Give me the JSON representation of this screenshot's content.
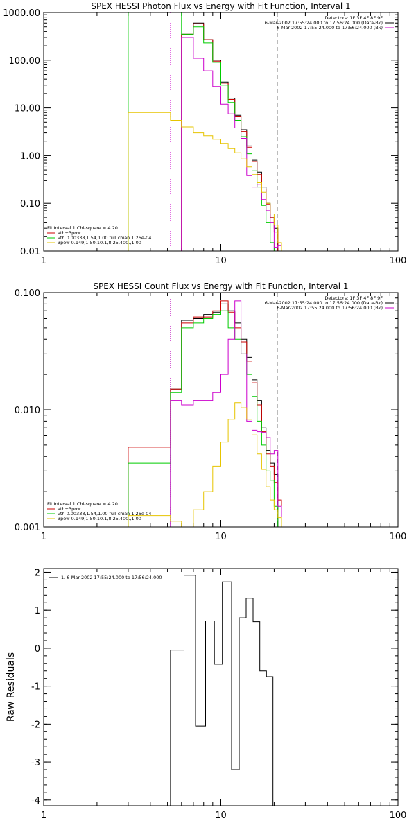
{
  "chart_data": [
    {
      "type": "line",
      "title": "SPEX HESSI Photon Flux vs Energy with Fit Function, Interval 1",
      "xlabel": "",
      "ylabel": "",
      "xscale": "log",
      "yscale": "log",
      "xlim": [
        1,
        100
      ],
      "ylim": [
        0.01,
        1000
      ],
      "xticks": [
        {
          "v": 1,
          "t": "1"
        },
        {
          "v": 10,
          "t": "10"
        },
        {
          "v": 100,
          "t": "100"
        }
      ],
      "yticks": [
        {
          "v": 0.01,
          "t": "0.01"
        },
        {
          "v": 0.1,
          "t": "0.10"
        },
        {
          "v": 1,
          "t": "1.00"
        },
        {
          "v": 10,
          "t": "10.00"
        },
        {
          "v": 100,
          "t": "100.00"
        },
        {
          "v": 1000,
          "t": "1000.00"
        }
      ],
      "info_lines": [
        {
          "text": "Detectors: 1F 3F 4F 8F 9F"
        },
        {
          "text": "6-Mar-2002 17:55:24.000 to 17:56:24.000 (Data-Bk)",
          "color": "#000000"
        },
        {
          "text": "6-Mar-2002 17:55:24.000 to 17:56:24.000 (Bk)",
          "color": "#cc00cc"
        }
      ],
      "fit_header": "Fit Interval 1   Chi-square = 4.20",
      "legend": [
        {
          "label": "vth+3pow",
          "color": "#cc0000"
        },
        {
          "label": "vth 0.00338,1.54,1.00  full chian 1.26e-04",
          "color": "#00cc00"
        },
        {
          "label": "3pow 0.149,1.50,10.1,8.25,400.,1.00",
          "color": "#e6c400"
        }
      ],
      "vlines": [
        {
          "x": 5.2,
          "color": "#cc00cc",
          "style": "dotted"
        },
        {
          "x": 20.8,
          "color": "#000000",
          "style": "dashed"
        }
      ],
      "edges": [
        3,
        5.2,
        6,
        7,
        8,
        9,
        10,
        11,
        12,
        13,
        14,
        15,
        16,
        17,
        18,
        19,
        20,
        21,
        22,
        23
      ],
      "series": [
        {
          "name": "Data-Bk",
          "color": "#000000",
          "values": [
            null,
            null,
            350,
            600,
            270,
            100,
            35,
            16,
            7,
            3.5,
            1.6,
            0.8,
            0.45,
            0.22,
            0.1,
            0.05,
            0.03,
            null,
            null
          ]
        },
        {
          "name": "vth+3pow",
          "color": "#cc0000",
          "values": [
            null,
            null,
            350,
            580,
            270,
            95,
            33,
            15,
            6.5,
            3.2,
            1.5,
            0.75,
            0.4,
            0.2,
            0.095,
            0.05,
            0.025,
            null,
            null
          ]
        },
        {
          "name": "vth",
          "color": "#00cc00",
          "values": [
            1000,
            1000,
            350,
            500,
            230,
            90,
            30,
            13,
            5.5,
            2.5,
            1.1,
            0.48,
            0.22,
            0.09,
            0.04,
            0.015,
            0.007,
            null,
            null
          ]
        },
        {
          "name": "Bk",
          "color": "#cc00cc",
          "values": [
            null,
            null,
            300,
            110,
            60,
            28,
            12,
            7.5,
            3.8,
            2.3,
            0.38,
            0.22,
            0.25,
            0.12,
            0.07,
            0.04,
            0.012,
            0.013,
            null
          ]
        },
        {
          "name": "3pow",
          "color": "#e6c400",
          "values": [
            8,
            5.5,
            4,
            3,
            2.6,
            2.2,
            1.8,
            1.4,
            1.15,
            0.85,
            0.58,
            0.4,
            0.27,
            0.17,
            0.1,
            0.06,
            0.035,
            0.015,
            null
          ]
        }
      ]
    },
    {
      "type": "line",
      "title": "SPEX HESSI Count Flux vs Energy with Fit Function, Interval 1",
      "xlabel": "",
      "ylabel": "",
      "xscale": "log",
      "yscale": "log",
      "xlim": [
        1,
        100
      ],
      "ylim": [
        0.001,
        0.1
      ],
      "xticks": [
        {
          "v": 1,
          "t": "1"
        },
        {
          "v": 10,
          "t": "10"
        },
        {
          "v": 100,
          "t": "100"
        }
      ],
      "yticks": [
        {
          "v": 0.001,
          "t": "0.001"
        },
        {
          "v": 0.01,
          "t": "0.010"
        },
        {
          "v": 0.1,
          "t": "0.100"
        }
      ],
      "info_lines": [
        {
          "text": "Detectors: 1F 3F 4F 8F 9F"
        },
        {
          "text": "6-Mar-2002 17:55:24.000 to 17:56:24.000 (Data-Bk)",
          "color": "#000000"
        },
        {
          "text": "6-Mar-2002 17:55:24.000 to 17:56:24.000 (Bk)",
          "color": "#cc00cc"
        }
      ],
      "fit_header": "Fit Interval 1   Chi-square = 4.20",
      "legend": [
        {
          "label": "vth+3pow",
          "color": "#cc0000"
        },
        {
          "label": "vth 0.00338,1.54,1.00  full chian 1.26e-04",
          "color": "#00cc00"
        },
        {
          "label": "3pow 0.149,1.50,10.1,8.25,400.,1.00",
          "color": "#e6c400"
        }
      ],
      "vlines": [
        {
          "x": 5.2,
          "color": "#000000",
          "style": "dotted"
        },
        {
          "x": 5.2,
          "color": "#cc00cc",
          "style": "dotted"
        },
        {
          "x": 20.8,
          "color": "#000000",
          "style": "dashed"
        }
      ],
      "edges": [
        3,
        5.2,
        6,
        7,
        8,
        9,
        10,
        11,
        12,
        13,
        14,
        15,
        16,
        17,
        18,
        19,
        20,
        21,
        22,
        23
      ],
      "series": [
        {
          "name": "Data-Bk",
          "color": "#000000",
          "values": [
            null,
            0.015,
            0.058,
            0.06,
            0.065,
            0.068,
            0.08,
            0.07,
            0.055,
            0.04,
            0.028,
            0.018,
            0.012,
            0.007,
            0.0045,
            0.0035,
            0.0028,
            null,
            null
          ]
        },
        {
          "name": "vth+3pow",
          "color": "#cc0000",
          "values": [
            0.0048,
            0.015,
            0.055,
            0.062,
            0.062,
            0.07,
            0.085,
            0.068,
            0.05,
            0.038,
            0.026,
            0.017,
            0.011,
            0.0065,
            0.0042,
            0.0033,
            0.0024,
            0.0017,
            null
          ]
        },
        {
          "name": "vth",
          "color": "#00cc00",
          "values": [
            0.0035,
            0.014,
            0.05,
            0.055,
            0.06,
            0.065,
            0.07,
            0.05,
            0.04,
            0.03,
            0.02,
            0.013,
            0.008,
            0.005,
            0.003,
            0.0025,
            0.0015,
            null,
            null
          ]
        },
        {
          "name": "Bk",
          "color": "#cc00cc",
          "values": [
            null,
            0.012,
            0.011,
            0.012,
            0.012,
            0.014,
            0.02,
            0.04,
            0.085,
            0.03,
            0.008,
            0.0067,
            0.0065,
            0.0064,
            0.0058,
            0.0042,
            0.0045,
            0.0015,
            null
          ]
        },
        {
          "name": "3pow",
          "color": "#e6c400",
          "values": [
            0.00125,
            0.00112,
            0.001,
            0.0014,
            0.002,
            0.0033,
            0.0053,
            0.0083,
            0.0115,
            0.0104,
            0.0083,
            0.0061,
            0.0042,
            0.0031,
            0.0022,
            0.0017,
            0.0014,
            0.0012,
            null
          ]
        }
      ]
    },
    {
      "type": "line",
      "title": "",
      "xlabel": "",
      "ylabel": "Raw Residuals",
      "xscale": "log",
      "yscale": "linear",
      "xlim": [
        1,
        100
      ],
      "ylim": [
        -4.15,
        2.1
      ],
      "xticks": [
        {
          "v": 1,
          "t": "1"
        },
        {
          "v": 10,
          "t": "10"
        },
        {
          "v": 100,
          "t": "100"
        }
      ],
      "yticks": [
        {
          "v": -4,
          "t": "-4"
        },
        {
          "v": -3,
          "t": "-3"
        },
        {
          "v": -2,
          "t": "-2"
        },
        {
          "v": -1,
          "t": "-1"
        },
        {
          "v": 0,
          "t": "0"
        },
        {
          "v": 1,
          "t": "1"
        },
        {
          "v": 2,
          "t": "2"
        }
      ],
      "legend": [
        {
          "label": "1. 6-Mar-2002 17:55:24.000 to 17:56:24.000",
          "color": "#000000"
        }
      ],
      "edges": [
        5.2,
        6.2,
        7.2,
        8.2,
        9.2,
        10.2,
        11.5,
        12.7,
        13.9,
        15.2,
        16.6,
        18.1,
        19.7
      ],
      "series": [
        {
          "name": "",
          "color": "#000000",
          "drop_ends": true,
          "values": [
            -0.05,
            1.92,
            -2.05,
            0.72,
            -0.42,
            1.75,
            -3.2,
            0.8,
            1.32,
            0.7,
            -0.6,
            -0.75
          ]
        }
      ]
    }
  ]
}
